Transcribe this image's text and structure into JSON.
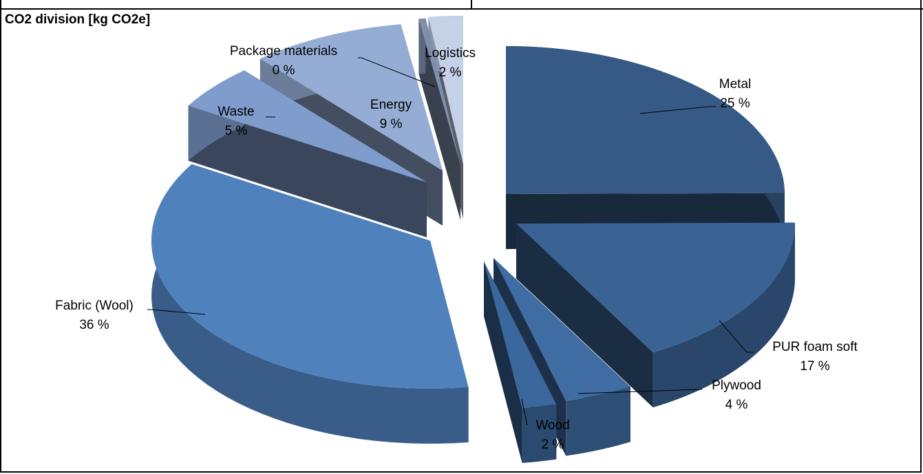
{
  "chart_data": {
    "type": "pie",
    "title": "CO2 division [kg CO2e]",
    "slices": [
      {
        "label": "Metal",
        "pct_label": "25 %",
        "value": 25
      },
      {
        "label": "PUR foam soft",
        "pct_label": "17 %",
        "value": 17
      },
      {
        "label": "Plywood",
        "pct_label": "4 %",
        "value": 4
      },
      {
        "label": "Wood",
        "pct_label": "2 %",
        "value": 2
      },
      {
        "label": "Fabric (Wool)",
        "pct_label": "36 %",
        "value": 36
      },
      {
        "label": "Waste",
        "pct_label": "5 %",
        "value": 5
      },
      {
        "label": "Energy",
        "pct_label": "9 %",
        "value": 9
      },
      {
        "label": "Package materials",
        "pct_label": "0 %",
        "value": 0.4
      },
      {
        "label": "Logistics",
        "pct_label": "2 %",
        "value": 2
      }
    ],
    "colors": {
      "Metal": "#365a85",
      "PUR foam soft": "#3a6394",
      "Plywood": "#3f6da3",
      "Wood": "#3a679c",
      "Fabric (Wool)": "#4f81bd",
      "Waste": "#7f9ccc",
      "Energy": "#95add5",
      "Package materials": "#7f8fae",
      "Logistics": "#c4d1e6"
    },
    "style": "exploded 3D pie"
  }
}
